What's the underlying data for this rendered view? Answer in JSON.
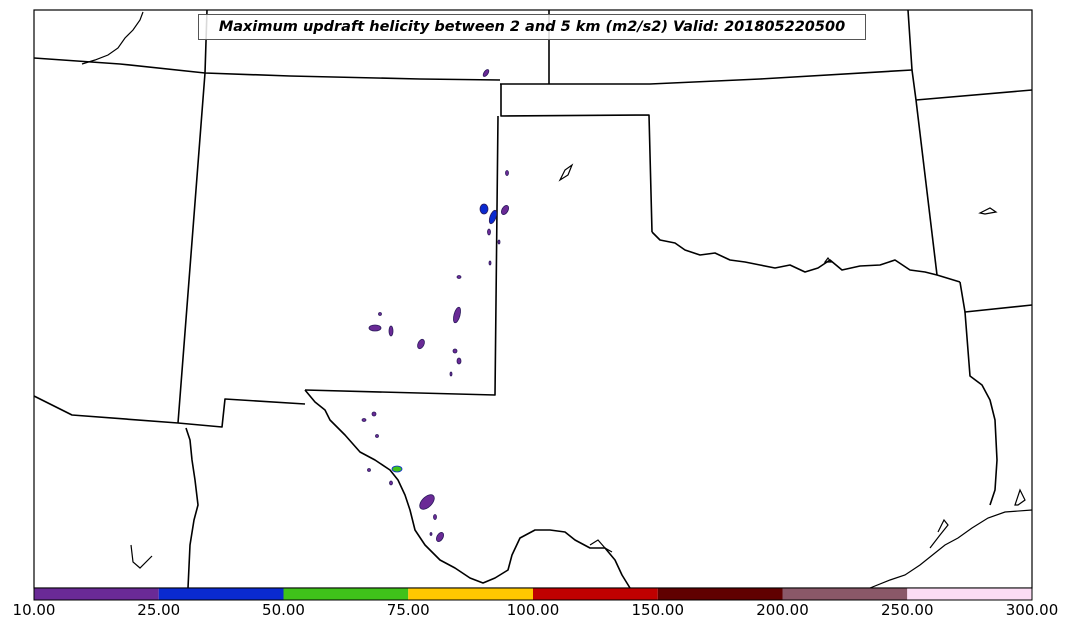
{
  "title": "Maximum updraft helicity between 2 and 5 km (m2/s2) Valid: 201805220500",
  "colorbar": {
    "segments": [
      {
        "from": "10.00",
        "to": "25.00",
        "color": "#6a2a96"
      },
      {
        "from": "25.00",
        "to": "50.00",
        "color": "#0a2ad0"
      },
      {
        "from": "50.00",
        "to": "75.00",
        "color": "#3fc21a"
      },
      {
        "from": "75.00",
        "to": "100.00",
        "color": "#ffc800"
      },
      {
        "from": "100.00",
        "to": "150.00",
        "color": "#c00000"
      },
      {
        "from": "150.00",
        "to": "200.00",
        "color": "#600000"
      },
      {
        "from": "200.00",
        "to": "250.00",
        "color": "#8a5868"
      },
      {
        "from": "250.00",
        "to": "300.00",
        "color": "#fcdcf4"
      }
    ],
    "tick_labels": [
      "10.00",
      "25.00",
      "50.00",
      "75.00",
      "100.00",
      "150.00",
      "200.00",
      "250.00",
      "300.00"
    ]
  },
  "colors": {
    "border": "#000000",
    "helicity_low": "#6a2a96",
    "helicity_mid": "#0a2ad0",
    "helicity_high": "#3fc21a"
  }
}
